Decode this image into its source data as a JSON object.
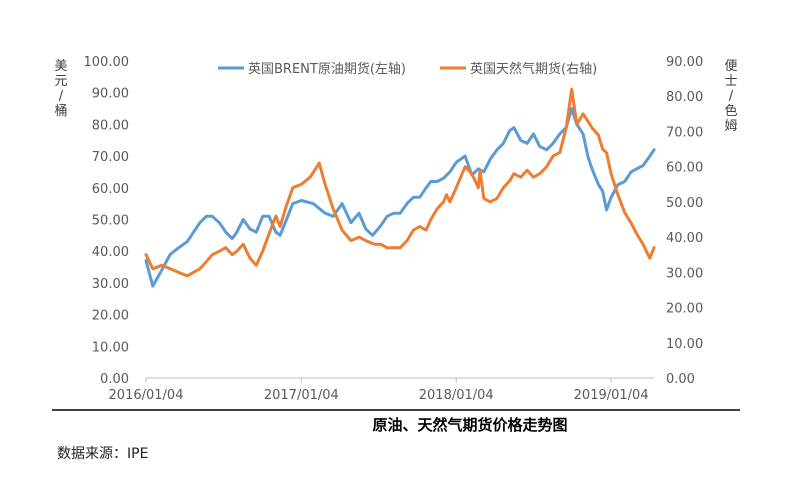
{
  "chart_data": {
    "type": "line",
    "title": "原油、天然气期货价格走势图",
    "source": "数据来源：IPE",
    "ylabel_left": "美元/桶",
    "ylabel_right": "便士/色姆",
    "ylim_left": [
      0,
      100
    ],
    "ylim_right": [
      0,
      90
    ],
    "yticks_left": [
      "0.00",
      "10.00",
      "20.00",
      "30.00",
      "40.00",
      "50.00",
      "60.00",
      "70.00",
      "80.00",
      "90.00",
      "100.00"
    ],
    "yticks_right": [
      "0.00",
      "10.00",
      "20.00",
      "30.00",
      "40.00",
      "50.00",
      "60.00",
      "70.00",
      "80.00",
      "90.00"
    ],
    "xticks": [
      "2016/01/04",
      "2017/01/04",
      "2018/01/04",
      "2019/01/04"
    ],
    "xlim": [
      "2016-01-04",
      "2019-04-15"
    ],
    "legend_position": "top",
    "series": [
      {
        "name": "英国BRENT原油期货(左轴)",
        "axis": "left",
        "color": "#5B9BD5",
        "x": [
          "2016-01-04",
          "2016-01-20",
          "2016-02-10",
          "2016-03-01",
          "2016-03-20",
          "2016-04-10",
          "2016-04-25",
          "2016-05-10",
          "2016-05-25",
          "2016-06-08",
          "2016-06-25",
          "2016-07-10",
          "2016-07-25",
          "2016-08-05",
          "2016-08-20",
          "2016-09-05",
          "2016-09-20",
          "2016-10-05",
          "2016-10-20",
          "2016-11-05",
          "2016-11-15",
          "2016-11-30",
          "2016-12-15",
          "2017-01-04",
          "2017-02-01",
          "2017-03-01",
          "2017-03-20",
          "2017-04-10",
          "2017-05-01",
          "2017-05-20",
          "2017-06-05",
          "2017-06-21",
          "2017-07-10",
          "2017-07-25",
          "2017-08-10",
          "2017-08-25",
          "2017-09-10",
          "2017-09-25",
          "2017-10-10",
          "2017-10-25",
          "2017-11-05",
          "2017-11-20",
          "2017-12-05",
          "2017-12-20",
          "2018-01-04",
          "2018-01-25",
          "2018-02-10",
          "2018-02-25",
          "2018-03-10",
          "2018-03-25",
          "2018-04-10",
          "2018-04-25",
          "2018-05-10",
          "2018-05-20",
          "2018-06-05",
          "2018-06-20",
          "2018-07-05",
          "2018-07-20",
          "2018-08-05",
          "2018-08-20",
          "2018-09-05",
          "2018-09-20",
          "2018-10-03",
          "2018-10-15",
          "2018-10-30",
          "2018-11-10",
          "2018-11-20",
          "2018-12-05",
          "2018-12-15",
          "2018-12-24",
          "2019-01-04",
          "2019-01-20",
          "2019-02-05",
          "2019-02-20",
          "2019-03-05",
          "2019-03-20",
          "2019-04-05",
          "2019-04-15"
        ],
        "values": [
          37,
          29,
          34,
          39,
          41,
          43,
          46,
          49,
          51,
          51,
          49,
          46,
          44,
          46,
          50,
          47,
          46,
          51,
          51,
          46,
          45,
          50,
          55,
          56,
          55,
          52,
          51,
          55,
          49,
          52,
          47,
          45,
          48,
          51,
          52,
          52,
          55,
          57,
          57,
          60,
          62,
          62,
          63,
          65,
          68,
          70,
          64,
          66,
          65,
          69,
          72,
          74,
          78,
          79,
          75,
          74,
          77,
          73,
          72,
          74,
          77,
          79,
          85,
          80,
          77,
          70,
          66,
          61,
          59,
          53,
          57,
          61,
          62,
          65,
          66,
          67,
          70,
          72
        ]
      },
      {
        "name": "英国天然气期货(右轴)",
        "axis": "right",
        "color": "#ED7D31",
        "x": [
          "2016-01-04",
          "2016-01-20",
          "2016-02-10",
          "2016-03-01",
          "2016-03-20",
          "2016-04-10",
          "2016-04-25",
          "2016-05-10",
          "2016-05-25",
          "2016-06-08",
          "2016-06-25",
          "2016-07-10",
          "2016-07-25",
          "2016-08-05",
          "2016-08-20",
          "2016-09-05",
          "2016-09-20",
          "2016-10-05",
          "2016-10-20",
          "2016-11-05",
          "2016-11-15",
          "2016-11-30",
          "2016-12-15",
          "2017-01-04",
          "2017-01-25",
          "2017-02-15",
          "2017-03-01",
          "2017-03-20",
          "2017-04-10",
          "2017-05-01",
          "2017-05-20",
          "2017-06-05",
          "2017-06-25",
          "2017-07-10",
          "2017-07-25",
          "2017-08-10",
          "2017-08-25",
          "2017-09-10",
          "2017-09-25",
          "2017-10-10",
          "2017-10-25",
          "2017-11-05",
          "2017-11-20",
          "2017-12-05",
          "2017-12-12",
          "2017-12-20",
          "2018-01-04",
          "2018-01-25",
          "2018-02-10",
          "2018-02-25",
          "2018-03-01",
          "2018-03-10",
          "2018-03-25",
          "2018-04-10",
          "2018-04-25",
          "2018-05-10",
          "2018-05-20",
          "2018-06-05",
          "2018-06-20",
          "2018-07-05",
          "2018-07-20",
          "2018-08-05",
          "2018-08-20",
          "2018-09-05",
          "2018-09-20",
          "2018-10-03",
          "2018-10-15",
          "2018-10-30",
          "2018-11-10",
          "2018-11-20",
          "2018-12-05",
          "2018-12-15",
          "2018-12-24",
          "2019-01-04",
          "2019-01-20",
          "2019-02-05",
          "2019-02-20",
          "2019-03-05",
          "2019-03-20",
          "2019-04-05",
          "2019-04-15"
        ],
        "values": [
          35,
          31,
          32,
          31,
          30,
          29,
          30,
          31,
          33,
          35,
          36,
          37,
          35,
          36,
          38,
          34,
          32,
          36,
          41,
          46,
          43,
          49,
          54,
          55,
          57,
          61,
          55,
          48,
          42,
          39,
          40,
          39,
          38,
          38,
          37,
          37,
          37,
          39,
          42,
          43,
          42,
          45,
          48,
          50,
          52,
          50,
          54,
          60,
          58,
          54,
          59,
          51,
          50,
          51,
          54,
          56,
          58,
          57,
          59,
          57,
          58,
          60,
          63,
          64,
          71,
          82,
          72,
          75,
          73,
          71,
          69,
          65,
          64,
          58,
          52,
          47,
          44,
          41,
          38,
          34,
          37
        ]
      }
    ]
  }
}
